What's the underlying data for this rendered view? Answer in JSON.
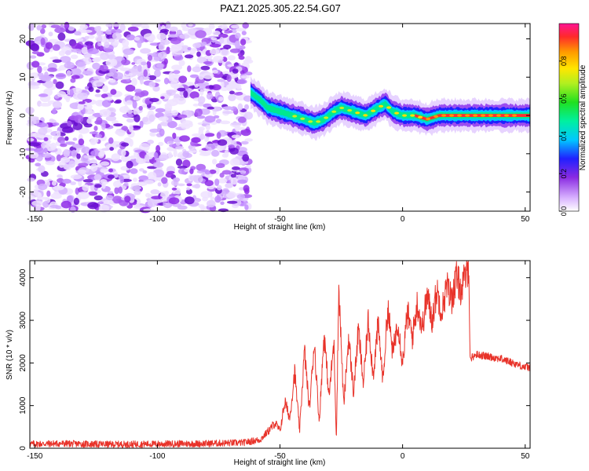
{
  "figure_title": "PAZ1.2025.305.22.54.G07",
  "chart_data": [
    {
      "type": "heatmap",
      "title": "PAZ1.2025.305.22.54.G07",
      "xlabel": "Height of straight line (km)",
      "ylabel": "Frequency (Hz)",
      "xlim": [
        -152,
        52
      ],
      "ylim": [
        -25,
        24
      ],
      "xticks": [
        -150,
        -100,
        -50,
        0,
        50
      ],
      "yticks": [
        20,
        10,
        0,
        -10,
        -20
      ],
      "noise_region_x": [
        -152,
        -62
      ],
      "signal_trace": {
        "x": [
          -62,
          -58,
          -55,
          -50,
          -45,
          -40,
          -36,
          -32,
          -28,
          -25,
          -20,
          -15,
          -10,
          -7,
          -4,
          0,
          5,
          10,
          15,
          20,
          30,
          40,
          50
        ],
        "y": [
          6,
          4,
          2,
          1,
          0,
          -1,
          -2,
          -1,
          1,
          2,
          1,
          0,
          2,
          3,
          1,
          0,
          0,
          -1,
          0,
          0,
          0,
          0,
          0
        ]
      },
      "colorbar": {
        "label": "Normalized spectral amplitude",
        "range": [
          0,
          1
        ],
        "ticks": [
          0.0,
          0.2,
          0.4,
          0.6,
          0.8
        ]
      }
    },
    {
      "type": "line",
      "xlabel": "Height of straight line (km)",
      "ylabel": "SNR (10 * v/v)",
      "xlim": [
        -152,
        52
      ],
      "ylim": [
        0,
        4400
      ],
      "xticks": [
        -150,
        -100,
        -50,
        0,
        50
      ],
      "yticks": [
        0,
        1000,
        2000,
        3000,
        4000
      ],
      "series": [
        {
          "name": "SNR",
          "color": "#e8332a",
          "x": [
            -152,
            -140,
            -120,
            -100,
            -80,
            -65,
            -58,
            -54,
            -52,
            -50,
            -48,
            -46,
            -44,
            -42,
            -40,
            -38,
            -36,
            -34,
            -32,
            -30,
            -28,
            -27,
            -26,
            -24,
            -22,
            -20,
            -18,
            -16,
            -14,
            -12,
            -10,
            -8,
            -6,
            -4,
            -2,
            0,
            2,
            4,
            6,
            8,
            10,
            12,
            14,
            16,
            18,
            20,
            22,
            24,
            26,
            27,
            27.5,
            30,
            35,
            40,
            45,
            50,
            52
          ],
          "values": [
            100,
            110,
            90,
            100,
            110,
            130,
            200,
            450,
            600,
            400,
            1100,
            700,
            1800,
            400,
            2300,
            900,
            2500,
            600,
            2700,
            1200,
            2500,
            200,
            3800,
            1000,
            2600,
            1300,
            2800,
            1500,
            3000,
            1700,
            2900,
            1600,
            3300,
            2200,
            3000,
            2000,
            3200,
            2600,
            3400,
            2800,
            3600,
            3000,
            3700,
            3200,
            3800,
            3500,
            4000,
            3700,
            4100,
            4300,
            2100,
            2200,
            2150,
            2100,
            2000,
            1900,
            1900
          ]
        }
      ]
    }
  ]
}
